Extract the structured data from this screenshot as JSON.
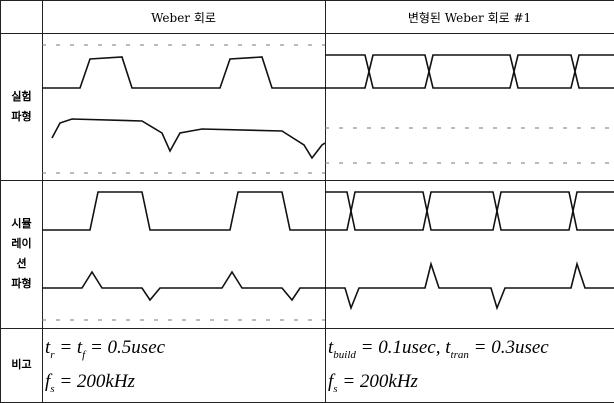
{
  "table": {
    "header": [
      "Weber 회로",
      "변형된 Weber 회로 #1"
    ],
    "rows": [
      {
        "label": [
          "실험",
          "파형"
        ]
      },
      {
        "label": [
          "시뮬",
          "레이",
          "션",
          "파형"
        ]
      },
      {
        "label": [
          "비고"
        ],
        "cells": [
          [
            [
              {
                "text": "t",
                "sub": "r"
              },
              {
                "text": " = t",
                "sub": "f"
              },
              {
                "text": " = 0.5usec"
              }
            ],
            [
              {
                "text": "f",
                "sub": "s"
              },
              {
                "text": " = 200kHz"
              }
            ]
          ],
          [
            [
              {
                "text": "t",
                "sub": "build"
              },
              {
                "text": " = 0.1usec, t",
                "sub": "tran"
              },
              {
                "text": " = 0.3usec"
              }
            ],
            [
              {
                "text": "f",
                "sub": "s"
              },
              {
                "text": " = 200kHz"
              }
            ]
          ]
        ]
      }
    ]
  }
}
